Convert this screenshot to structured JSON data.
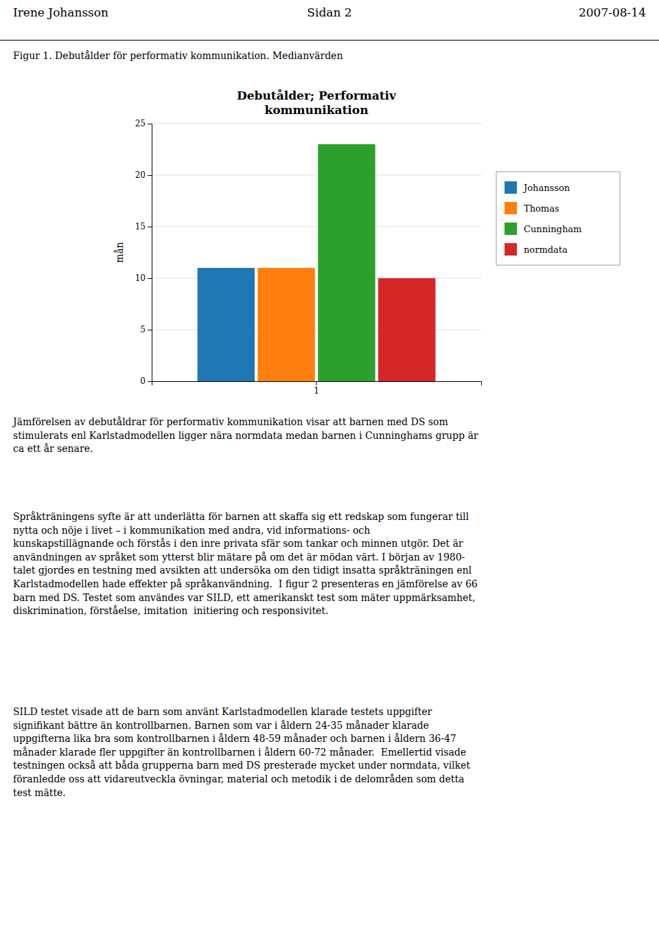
{
  "header_left": "Irene  Johansson",
  "header_center": "Sidan 2",
  "header_right": "2007-08-14",
  "fig_label": "Figur 1. Debutålder för performativ kommunikation. Medianvärden",
  "chart_data": {
    "type": "bar",
    "title": "Debutålder; Performativ\nkommunikation",
    "y_label": "mån",
    "categories": [
      "1"
    ],
    "series": [
      {
        "name": "Johansson",
        "values": [
          11
        ]
      },
      {
        "name": "Thomas",
        "values": [
          11
        ]
      },
      {
        "name": "Cunningham",
        "values": [
          23
        ]
      },
      {
        "name": "normdata",
        "values": [
          10
        ]
      }
    ],
    "ylim": [
      0,
      25
    ],
    "yticks": [
      0,
      5,
      10,
      15,
      20,
      25
    ],
    "grid": true,
    "legend": "right"
  },
  "body_text_1": "Jämförelsen av debutåldrar för performativ kommunikation visar att barnen med DS som\nstimulerats enl Karlstadmodellen ligger nära normdata medan barnen i Cunninghams grupp är\nca ett år senare.",
  "body_text_2": "Språkträningens syfte är att underlätta för barnen att skaffa sig ett redskap som fungerar till\nnytta och nöje i livet – i kommunikation med andra, vid informations- och\nkunskapstillägnande och förstås i den inre privata sfär som tankar och minnen utgör. Det är\nanvändningen av språket som ytterst blir mätare på om det är mödan värt. I början av 1980-\ntalet gjordes en testning med avsikten att undersöka om den tidigt insatta språkträningen enl\nKarlstadmodellen hade effekter på språkanvändning.  I figur 2 presenteras en jämförelse av 66\nbarn med DS. Testet som användes var SILD, ett amerikanskt test som mäter uppmärksamhet,\ndiskrimination, förståelse, imitation  initiering och responsivitet.",
  "body_text_3": "SILD testet visade att de barn som använt Karlstadmodellen klarade testets uppgifter\nsignifikant bättre än kontrollbarnen. Barnen som var i åldern 24-35 månader klarade\nuppgifterna lika bra som kontrollbarnen i åldern 48-59 månader och barnen i åldern 36-47\nmånader klarade fler uppgifter än kontrollbarnen i åldern 60-72 månader.  Emellertid visade\ntestningen också att båda grupperna barn med DS presterade mycket under normdata, vilket\nföranledde oss att vidareutveckla övningar, material och metodik i de delområden som detta\ntest mätte."
}
